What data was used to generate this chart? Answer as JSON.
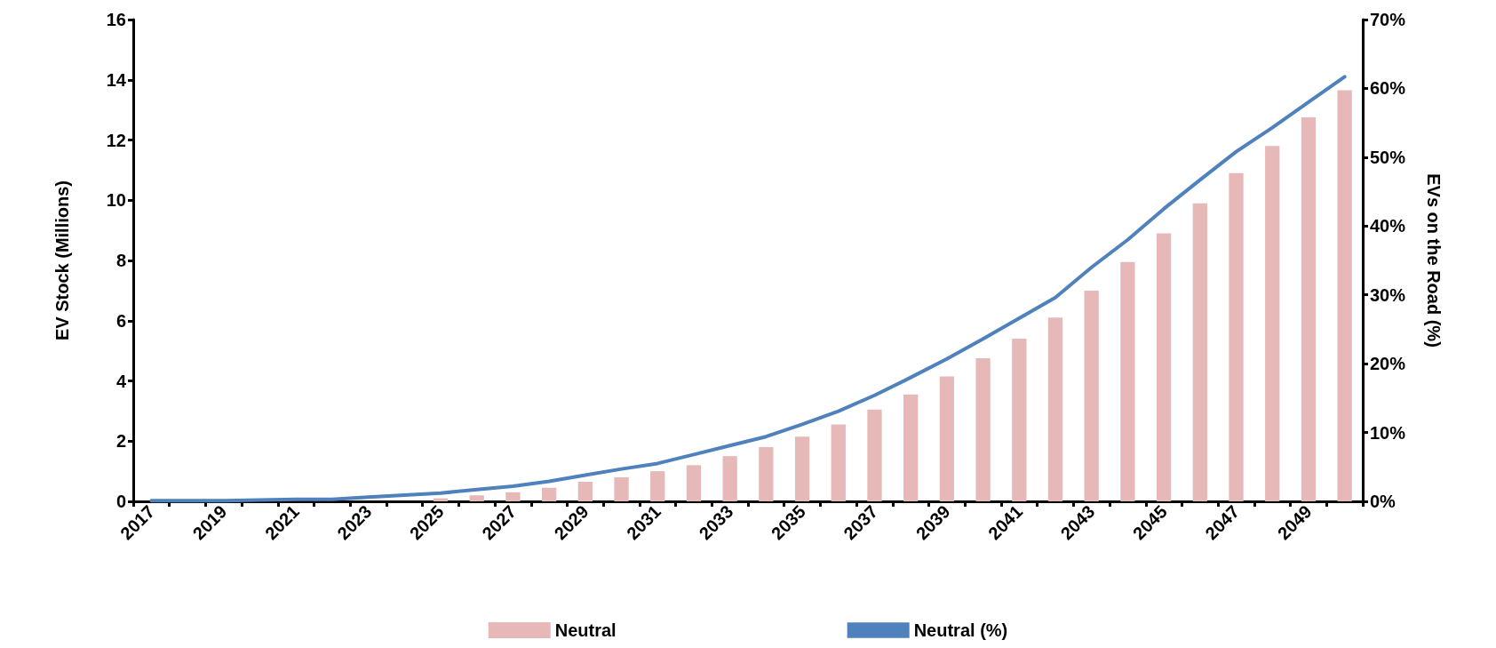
{
  "chart_data": {
    "type": "bar",
    "ylabel": "EV Stock (Millions)",
    "y2label": "EVs on the Road (%)",
    "categories": [
      "2017",
      null,
      "2019",
      null,
      "2021",
      null,
      "2023",
      null,
      "2025",
      null,
      "2027",
      null,
      "2029",
      null,
      "2031",
      null,
      "2033",
      null,
      "2035",
      null,
      "2037",
      null,
      "2039",
      null,
      "2041",
      null,
      "2043",
      null,
      "2045",
      null,
      "2047",
      null,
      "2049",
      null
    ],
    "series": [
      {
        "name": "Neutral",
        "color": "#e6b8b7",
        "values": [
          0,
          0,
          0,
          0,
          0,
          0,
          null,
          null,
          0.1,
          0.2,
          0.3,
          0.45,
          0.65,
          0.8,
          1.0,
          1.2,
          1.5,
          1.8,
          2.15,
          2.55,
          3.05,
          3.55,
          4.15,
          4.75,
          5.4,
          6.1,
          7.0,
          7.95,
          8.9,
          9.9,
          10.9,
          11.8,
          12.75,
          13.65
        ]
      },
      {
        "name": "Neutral (%)",
        "type": "line",
        "axis": "y2",
        "color": "#4f81bd",
        "values": [
          0.1,
          0.1,
          0.1,
          0.2,
          0.3,
          0.3,
          0.6,
          0.9,
          1.2,
          1.7,
          2.2,
          2.9,
          3.8,
          4.7,
          5.5,
          6.8,
          8.1,
          9.4,
          11.2,
          13.1,
          15.4,
          18.0,
          20.7,
          23.6,
          26.6,
          29.6,
          34,
          38,
          42.5,
          46.7,
          50.8,
          54.3,
          58,
          61.7
        ]
      }
    ],
    "ylim": [
      0,
      16
    ],
    "yticks": [
      0,
      2,
      4,
      6,
      8,
      10,
      12,
      14,
      16
    ],
    "y2lim": [
      0,
      70
    ],
    "y2ticks": [
      {
        "value": 0,
        "label": "0%"
      },
      {
        "value": 10,
        "label": "10%"
      },
      {
        "value": 20,
        "label": "20%"
      },
      {
        "value": 30,
        "label": "30%"
      },
      {
        "value": 40,
        "label": "40%"
      },
      {
        "value": 50,
        "label": "50%"
      },
      {
        "value": 60,
        "label": "60%"
      },
      {
        "value": 70,
        "label": "70%"
      }
    ],
    "grid": false,
    "legend": "bottom",
    "marker": "none",
    "line_style": "solid"
  }
}
